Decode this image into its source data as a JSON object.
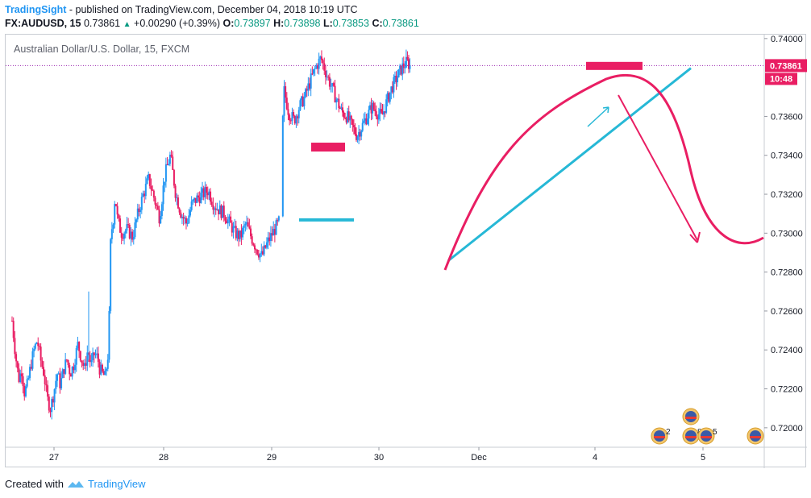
{
  "header": {
    "brand": "TradingSight",
    "published": "- published on TradingView.com, December 04, 2018 10:19 UTC",
    "symbol": "FX:AUDUSD, 15",
    "last": "0.73861",
    "change": "+0.00290 (+0.39%)",
    "o_label": "O:",
    "o": "0.73897",
    "h_label": "H:",
    "h": "0.73898",
    "l_label": "L:",
    "l": "0.73853",
    "c_label": "C:",
    "c": "0.73861"
  },
  "footer": {
    "created_with": "Created with",
    "brand": "TradingView"
  },
  "colors": {
    "up": "#26a69a",
    "down": "#ef5350",
    "candle_up": "#2196f3",
    "candle_down": "#e91e63",
    "pink": "#e91e63",
    "cyan": "#26b8d6",
    "priceline": "#9c27b0"
  },
  "chart_data": {
    "type": "candlestick",
    "title": "Australian Dollar/U.S. Dollar, 15, FXCM",
    "x_ticks": [
      "27",
      "28",
      "29",
      "30",
      "Dec",
      "4",
      "5"
    ],
    "y_ticks": [
      "0.74000",
      "0.73600",
      "0.73400",
      "0.73200",
      "0.73000",
      "0.72800",
      "0.72600",
      "0.72400",
      "0.72200",
      "0.72000"
    ],
    "ylim": [
      0.719,
      0.7402
    ],
    "current_price_label": "0.73861",
    "countdown_label": "10:48",
    "event_markers": [
      "2",
      "8",
      "5"
    ],
    "close_path": [
      [
        0.0,
        0.7255
      ],
      [
        0.03,
        0.7238
      ],
      [
        0.06,
        0.7225
      ],
      [
        0.09,
        0.723
      ],
      [
        0.11,
        0.7218
      ],
      [
        0.14,
        0.7222
      ],
      [
        0.17,
        0.7232
      ],
      [
        0.2,
        0.724
      ],
      [
        0.23,
        0.7245
      ],
      [
        0.26,
        0.7235
      ],
      [
        0.29,
        0.7228
      ],
      [
        0.32,
        0.7215
      ],
      [
        0.35,
        0.721
      ],
      [
        0.38,
        0.7218
      ],
      [
        0.41,
        0.7228
      ],
      [
        0.44,
        0.7222
      ],
      [
        0.47,
        0.723
      ],
      [
        0.5,
        0.7235
      ],
      [
        0.53,
        0.7228
      ],
      [
        0.56,
        0.7232
      ],
      [
        0.6,
        0.7243
      ],
      [
        0.63,
        0.7236
      ],
      [
        0.66,
        0.723
      ],
      [
        0.69,
        0.724
      ],
      [
        0.72,
        0.7232
      ],
      [
        0.75,
        0.7238
      ],
      [
        0.78,
        0.7236
      ],
      [
        0.8,
        0.723
      ],
      [
        0.82,
        0.7228
      ],
      [
        0.85,
        0.7226
      ],
      [
        0.88,
        0.724
      ],
      [
        0.9,
        0.73
      ],
      [
        0.92,
        0.7305
      ],
      [
        0.94,
        0.732
      ],
      [
        0.96,
        0.7308
      ],
      [
        0.98,
        0.7303
      ],
      [
        1.0,
        0.73
      ],
      [
        1.05,
        0.7302
      ],
      [
        1.1,
        0.7298
      ],
      [
        1.15,
        0.731
      ],
      [
        1.2,
        0.732
      ],
      [
        1.25,
        0.7328
      ],
      [
        1.3,
        0.7318
      ],
      [
        1.35,
        0.7308
      ],
      [
        1.4,
        0.733
      ],
      [
        1.45,
        0.734
      ],
      [
        1.5,
        0.732
      ],
      [
        1.55,
        0.731
      ],
      [
        1.6,
        0.7305
      ],
      [
        1.65,
        0.7315
      ],
      [
        1.7,
        0.7318
      ],
      [
        1.75,
        0.732
      ],
      [
        1.8,
        0.7322
      ],
      [
        1.85,
        0.7315
      ],
      [
        1.9,
        0.7312
      ],
      [
        1.95,
        0.731
      ],
      [
        2.0,
        0.7305
      ],
      [
        2.05,
        0.73
      ],
      [
        2.1,
        0.7298
      ],
      [
        2.15,
        0.7305
      ],
      [
        2.2,
        0.7298
      ],
      [
        2.25,
        0.7292
      ],
      [
        2.3,
        0.7288
      ],
      [
        2.35,
        0.7295
      ],
      [
        2.4,
        0.73
      ],
      [
        2.45,
        0.7305
      ],
      [
        2.48,
        0.7308
      ],
      [
        2.5,
        0.7375
      ],
      [
        2.55,
        0.7362
      ],
      [
        2.6,
        0.7358
      ],
      [
        2.65,
        0.7365
      ],
      [
        2.7,
        0.737
      ],
      [
        2.75,
        0.7378
      ],
      [
        2.8,
        0.7385
      ],
      [
        2.85,
        0.739
      ],
      [
        2.9,
        0.7382
      ],
      [
        2.95,
        0.7375
      ],
      [
        3.0,
        0.7368
      ],
      [
        3.05,
        0.7362
      ],
      [
        3.1,
        0.736
      ],
      [
        3.15,
        0.7355
      ],
      [
        3.2,
        0.735
      ],
      [
        3.25,
        0.7355
      ],
      [
        3.3,
        0.736
      ],
      [
        3.35,
        0.7365
      ],
      [
        3.4,
        0.7362
      ],
      [
        3.45,
        0.736
      ],
      [
        3.5,
        0.7368
      ],
      [
        3.55,
        0.7375
      ],
      [
        3.6,
        0.738
      ],
      [
        3.65,
        0.7385
      ],
      [
        3.7,
        0.7388
      ],
      [
        3.73,
        0.7386
      ]
    ]
  }
}
